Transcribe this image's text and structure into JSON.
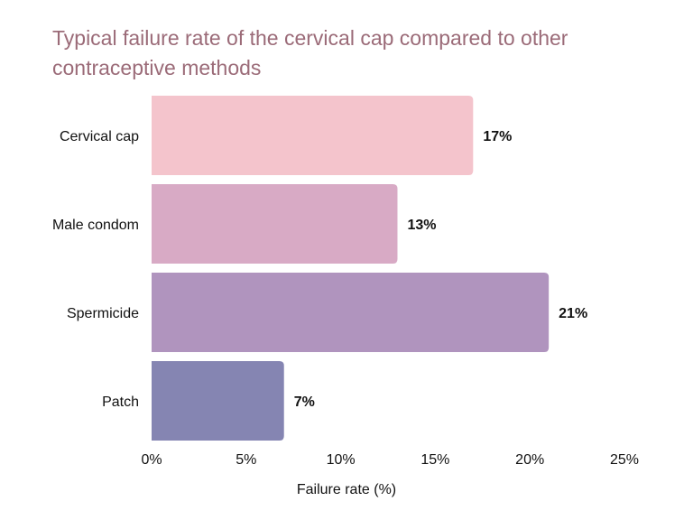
{
  "chart_data": {
    "type": "bar",
    "orientation": "horizontal",
    "title": "Typical failure rate of the cervical cap compared to other contraceptive methods",
    "xlabel": "Failure rate (%)",
    "ylabel": "",
    "categories": [
      "Cervical cap",
      "Male condom",
      "Spermicide",
      "Patch"
    ],
    "values": [
      17,
      13,
      21,
      7
    ],
    "value_labels": [
      "17%",
      "13%",
      "21%",
      "7%"
    ],
    "colors": [
      "#f4c4cc",
      "#d8aac5",
      "#b094be",
      "#8585b2"
    ],
    "xlim": [
      0,
      25
    ],
    "xticks": [
      0,
      5,
      10,
      15,
      20,
      25
    ],
    "xtick_labels": [
      "0%",
      "5%",
      "10%",
      "15%",
      "20%",
      "25%"
    ],
    "grid": false,
    "legend": "none"
  }
}
